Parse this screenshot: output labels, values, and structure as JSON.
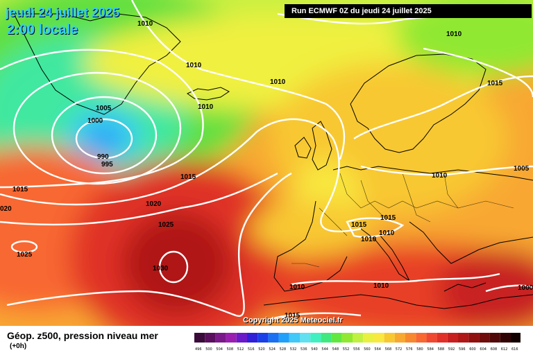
{
  "header": {
    "date": "jeudi 24 juillet 2025",
    "time": "2:00 locale",
    "run": "Run ECMWF 0Z du jeudi 24 juillet 2025"
  },
  "copyright": "Copyright 2025 Meteociel.fr",
  "legend": {
    "title": "Géop. z500, pression niveau mer",
    "subtitle": "(+0h)",
    "ticks": [
      "496",
      "500",
      "504",
      "508",
      "512",
      "516",
      "520",
      "524",
      "528",
      "532",
      "536",
      "540",
      "544",
      "548",
      "552",
      "556",
      "560",
      "564",
      "568",
      "572",
      "576",
      "580",
      "584",
      "588",
      "592",
      "596",
      "600",
      "604",
      "608",
      "612",
      "616"
    ],
    "colors": [
      "#3a0a3a",
      "#5a0f5e",
      "#7a1a8a",
      "#9a1fb0",
      "#6a1ac8",
      "#3020d8",
      "#1a40e8",
      "#1a70f0",
      "#20a0f8",
      "#40c8f8",
      "#60e0f0",
      "#40f0c0",
      "#40e880",
      "#60e840",
      "#90e830",
      "#c0f040",
      "#e8f040",
      "#f8e840",
      "#f8c830",
      "#f8a830",
      "#f88830",
      "#f86830",
      "#f04830",
      "#e03028",
      "#c82020",
      "#b01818",
      "#901010",
      "#700c0c",
      "#500808",
      "#300404",
      "#100000"
    ]
  },
  "isobars": [
    {
      "label": "1010",
      "pos": "top-left"
    },
    {
      "label": "1010",
      "pos": "greenland-south"
    },
    {
      "label": "1010",
      "pos": "atlantic-north"
    },
    {
      "label": "1010",
      "pos": "north-sea"
    },
    {
      "label": "1010",
      "pos": "norway-sea"
    },
    {
      "label": "1015",
      "pos": "finland"
    },
    {
      "label": "1005",
      "pos": "low-ring"
    },
    {
      "label": "1000",
      "pos": "low-ring"
    },
    {
      "label": "990",
      "pos": "low-center"
    },
    {
      "label": "995",
      "pos": "low-ring"
    },
    {
      "label": "1015",
      "pos": "west-edge"
    },
    {
      "label": "020",
      "pos": "west-edge"
    },
    {
      "label": "1020",
      "pos": "mid-atlantic"
    },
    {
      "label": "1015",
      "pos": "atlantic-mid"
    },
    {
      "label": "1025",
      "pos": "azores"
    },
    {
      "label": "1025",
      "pos": "west-south"
    },
    {
      "label": "1030",
      "pos": "high-center"
    },
    {
      "label": "1010",
      "pos": "poland"
    },
    {
      "label": "1005",
      "pos": "east-edge"
    },
    {
      "label": "1015",
      "pos": "alps"
    },
    {
      "label": "1015",
      "pos": "alps-east"
    },
    {
      "label": "1010",
      "pos": "italy-north"
    },
    {
      "label": "1010",
      "pos": "italy"
    },
    {
      "label": "1010",
      "pos": "algeria"
    },
    {
      "label": "1010",
      "pos": "libya"
    },
    {
      "label": "1015",
      "pos": "sahara"
    },
    {
      "label": "1000",
      "pos": "east-bottom"
    }
  ]
}
